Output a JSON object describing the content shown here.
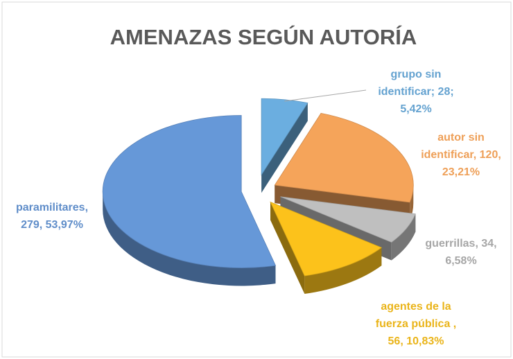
{
  "chart_data": {
    "type": "pie3d",
    "title": "AMENAZAS SEGÚN AUTORÍA",
    "values": [
      28,
      120,
      34,
      56,
      279
    ],
    "value_labels": [
      [
        "grupo sin",
        "identificar; 28;",
        "5,42%"
      ],
      [
        "autor sin",
        "identificar, 120,",
        "23,21%"
      ],
      [
        "guerrillas, 34,",
        "6,58%"
      ],
      [
        "agentes de la",
        "fuerza pública ,",
        "56, 10,83%"
      ],
      [
        "paramilitares,",
        "279, 53,97%"
      ]
    ],
    "colors": [
      "#6baee0",
      "#f5a45a",
      "#bfbfbf",
      "#fcc21b",
      "#6698d8"
    ]
  }
}
